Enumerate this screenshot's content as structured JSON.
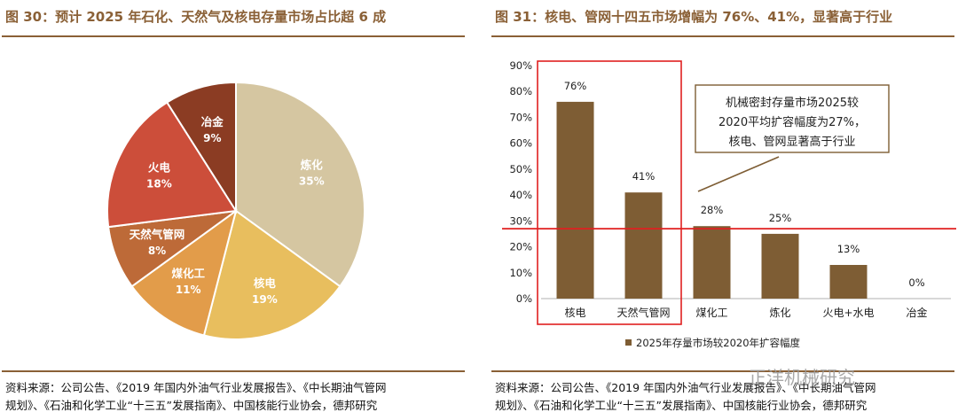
{
  "left": {
    "title": "图 30：预计 2025 年石化、天然气及核电存量市场占比超 6 成",
    "source_line1": "资料来源：公司公告、《2019 年国内外油气行业发展报告》、《中长期油气管网",
    "source_line2": "规划》、《石油和化学工业“十三五”发展指南》、中国核能行业协会，德邦研究"
  },
  "right": {
    "title": "图 31：核电、管网十四五市场增幅为 76%、41%，显著高于行业",
    "source_line1": "资料来源：公司公告、《2019 年国内外油气行业发展报告》、《中长期油气管网",
    "source_line2": "规划》、《石油和化学工业“十三五”发展指南》、中国核能行业协会，德邦研究",
    "callout_line1": "机械密封存量市场2025较",
    "callout_line2": "2020平均扩容幅度为27%，",
    "callout_line3": "核电、管网显著高于行业"
  },
  "watermark": "正洋机械研究",
  "chart_data": [
    {
      "type": "pie",
      "categories": [
        "炼化",
        "核电",
        "煤化工",
        "天然气管网",
        "火电",
        "冶金"
      ],
      "values": [
        35,
        19,
        11,
        8,
        18,
        9
      ],
      "value_labels": [
        "35%",
        "19%",
        "11%",
        "8%",
        "18%",
        "9%"
      ],
      "colors": [
        "#d5c6a1",
        "#e8be5e",
        "#e29c4a",
        "#bd6a38",
        "#cc4e3a",
        "#8b3c23"
      ],
      "legend": "none"
    },
    {
      "type": "bar",
      "categories": [
        "核电",
        "天然气管网",
        "煤化工",
        "炼化",
        "火电+水电",
        "冶金"
      ],
      "series": [
        {
          "name": "2025年存量市场较2020年扩容幅度",
          "values": [
            76,
            41,
            28,
            25,
            13,
            0
          ]
        }
      ],
      "value_labels": [
        "76%",
        "41%",
        "28%",
        "25%",
        "13%",
        "0%"
      ],
      "yticks": [
        "0%",
        "10%",
        "20%",
        "30%",
        "40%",
        "50%",
        "60%",
        "70%",
        "80%",
        "90%"
      ],
      "ylim": [
        0,
        90
      ],
      "reference_line": 27,
      "bar_color": "#7e5d34",
      "highlight_color": "#e02020",
      "grid": false,
      "legend": "bottom"
    }
  ]
}
